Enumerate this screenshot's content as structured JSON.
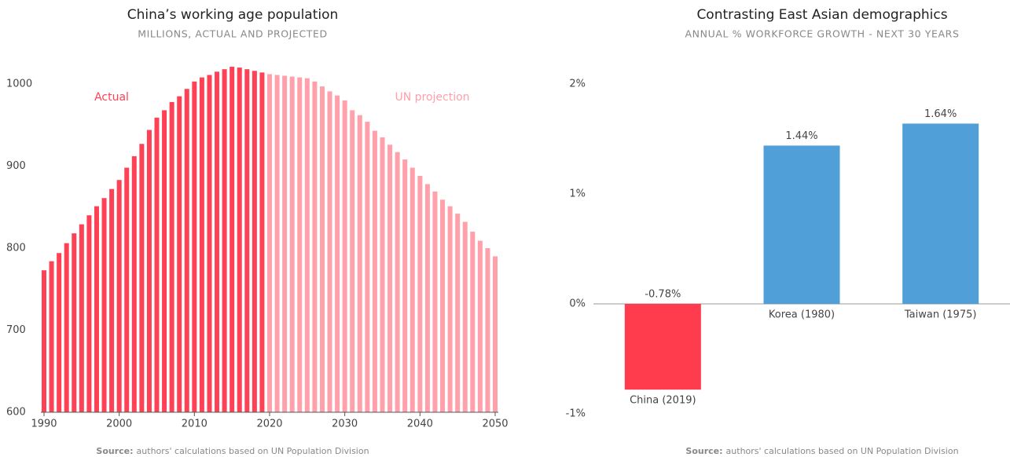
{
  "chart_data": [
    {
      "type": "bar",
      "title": "China’s working age population",
      "subtitle": "MILLIONS, ACTUAL AND PROJECTED",
      "series": [
        {
          "name": "Actual",
          "color": "#ff4155",
          "x": [
            1990,
            1991,
            1992,
            1993,
            1994,
            1995,
            1996,
            1997,
            1998,
            1999,
            2000,
            2001,
            2002,
            2003,
            2004,
            2005,
            2006,
            2007,
            2008,
            2009,
            2010,
            2011,
            2012,
            2013,
            2014,
            2015,
            2016,
            2017,
            2018,
            2019
          ],
          "values": [
            773,
            784,
            794,
            806,
            818,
            829,
            840,
            851,
            861,
            872,
            883,
            898,
            912,
            927,
            944,
            959,
            968,
            978,
            985,
            994,
            1003,
            1008,
            1011,
            1015,
            1018,
            1021,
            1020,
            1018,
            1016,
            1014
          ]
        },
        {
          "name": "UN projection",
          "color": "#ffa0aa",
          "x": [
            2020,
            2021,
            2022,
            2023,
            2024,
            2025,
            2026,
            2027,
            2028,
            2029,
            2030,
            2031,
            2032,
            2033,
            2034,
            2035,
            2036,
            2037,
            2038,
            2039,
            2040,
            2041,
            2042,
            2043,
            2044,
            2045,
            2046,
            2047,
            2048,
            2049,
            2050
          ],
          "values": [
            1012,
            1011,
            1010,
            1009,
            1008,
            1007,
            1003,
            997,
            991,
            986,
            980,
            968,
            962,
            954,
            943,
            935,
            926,
            917,
            908,
            898,
            888,
            878,
            869,
            859,
            851,
            842,
            832,
            820,
            809,
            800,
            790
          ]
        }
      ],
      "xlim": [
        1990,
        2050
      ],
      "xticks": [
        1990,
        2000,
        2010,
        2020,
        2030,
        2040,
        2050
      ],
      "ylim": [
        600,
        1030
      ],
      "yticks": [
        600,
        700,
        800,
        900,
        1000
      ],
      "source_label": "Source:",
      "source_text": "authors' calculations based on UN Population Division"
    },
    {
      "type": "bar",
      "title": "Contrasting East Asian demographics",
      "subtitle": "ANNUAL % WORKFORCE GROWTH - NEXT 30 YEARS",
      "categories": [
        "China (2019)",
        "Korea (1980)",
        "Taiwan (1975)"
      ],
      "values": [
        -0.78,
        1.44,
        1.64
      ],
      "value_labels": [
        "-0.78%",
        "1.44%",
        "1.64%"
      ],
      "colors": [
        "#ff3b4e",
        "#509fd8",
        "#509fd8"
      ],
      "ylim": [
        -1,
        2
      ],
      "yticks": [
        {
          "value": -1,
          "label": "-1%"
        },
        {
          "value": 0,
          "label": "0%"
        },
        {
          "value": 1,
          "label": "1%"
        },
        {
          "value": 2,
          "label": "2%"
        }
      ],
      "source_label": "Source:",
      "source_text": "authors' calculations based on UN Population Division"
    }
  ]
}
